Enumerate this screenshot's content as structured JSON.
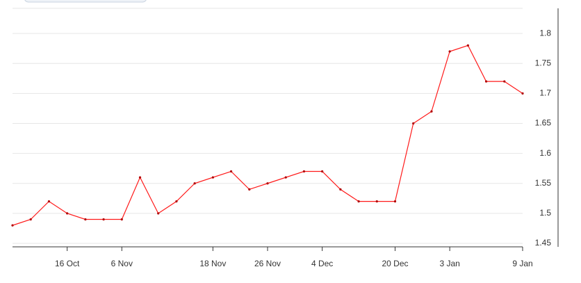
{
  "chart_data": {
    "type": "line",
    "categories": [
      null,
      null,
      null,
      "16 Oct",
      null,
      null,
      "6 Nov",
      null,
      null,
      null,
      null,
      "18 Nov",
      null,
      null,
      "26 Nov",
      null,
      null,
      "4 Dec",
      null,
      null,
      null,
      "20 Dec",
      null,
      null,
      "3 Jan",
      null,
      null,
      null,
      "9 Jan"
    ],
    "series": [
      {
        "color": "#ff1a1a",
        "values": [
          1.48,
          1.49,
          1.52,
          1.5,
          1.49,
          1.49,
          1.49,
          1.56,
          1.5,
          1.52,
          1.55,
          1.56,
          1.57,
          1.54,
          1.55,
          1.56,
          1.57,
          1.57,
          1.54,
          1.52,
          1.52,
          1.52,
          1.65,
          1.67,
          1.77,
          1.78,
          1.72,
          1.72,
          1.7
        ]
      }
    ],
    "ylim": [
      1.45,
      1.85
    ],
    "yticks": [
      1.45,
      {
        "value": 1.5,
        "label": "1.5"
      },
      1.55,
      {
        "value": 1.6,
        "label": "1.6"
      },
      1.65,
      {
        "value": 1.7,
        "label": "1.7"
      },
      1.75,
      {
        "value": 1.8,
        "label": "1.8"
      }
    ],
    "grid": true
  }
}
